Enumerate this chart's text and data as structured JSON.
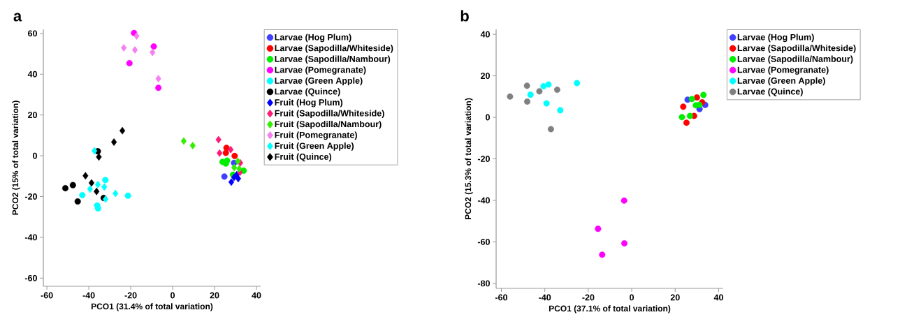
{
  "chart_data": [
    {
      "type": "scatter",
      "title": "a",
      "xlabel": "PCO1 (31.4% of total variation)",
      "ylabel": "PCO2 (15% of total variation)",
      "xlim": [
        -61.7,
        42
      ],
      "ylim": [
        -64,
        62
      ],
      "xticks": [
        -60,
        -40,
        -20,
        0,
        20,
        40
      ],
      "yticks": [
        -60,
        -40,
        -20,
        0,
        20,
        40,
        60
      ],
      "grid": false,
      "legend": "top right",
      "series": [
        {
          "name": "Larvae (Hog Plum)",
          "color": "#4040ff",
          "marker": "circle",
          "x": [
            24.7,
            29.3
          ],
          "values": [
            -10.2,
            -3.5
          ]
        },
        {
          "name": "Larvae (Sapodilla/Whiteside)",
          "color": "#ff0000",
          "marker": "circle",
          "x": [
            25.7,
            25.4,
            29.6
          ],
          "values": [
            3.9,
            1.4,
            -0.1
          ]
        },
        {
          "name": "Larvae (Sapodilla/Nambour)",
          "color": "#00ee00",
          "marker": "circle",
          "x": [
            23.8,
            26,
            25.4,
            33.9,
            28.8
          ],
          "values": [
            -3.0,
            -2.4,
            -3.8,
            -7.3,
            -9.3
          ]
        },
        {
          "name": "Larvae (Pomegranate)",
          "color": "#ff00ff",
          "marker": "circle",
          "x": [
            -18.4,
            -9,
            -20.6,
            -6.8
          ],
          "values": [
            60.2,
            53.6,
            45.4,
            33.3
          ]
        },
        {
          "name": "Larvae (Green Apple)",
          "color": "#00ffff",
          "marker": "circle",
          "x": [
            -32.1,
            -43.1,
            -21.3,
            -36,
            -35.6
          ],
          "values": [
            -11.9,
            -19.3,
            -19.6,
            -24.4,
            -25.8
          ]
        },
        {
          "name": "Larvae (Quince)",
          "color": "#000000",
          "marker": "circle",
          "x": [
            -35.7,
            -51.2,
            -47.6,
            -45.3,
            -32.9
          ],
          "values": [
            2.2,
            -15.9,
            -14.4,
            -22.4,
            -20.7
          ]
        },
        {
          "name": "Fruit (Hog Plum)",
          "color": "#0000ff",
          "marker": "diamond",
          "x": [
            28,
            31.3,
            29.3,
            30.6
          ],
          "values": [
            -12.9,
            -11.2,
            -10.6,
            -9.3
          ]
        },
        {
          "name": "Fruit (Sapodilla/Whiteside)",
          "color": "#ff1a75",
          "marker": "diamond",
          "x": [
            21.9,
            27.7,
            22.4,
            32.3,
            32.1
          ],
          "values": [
            7.9,
            3,
            1.3,
            -3.5,
            -8.1
          ]
        },
        {
          "name": "Fruit (Sapodilla/Nambour)",
          "color": "#33ee00",
          "marker": "diamond",
          "x": [
            5.3,
            9.6,
            31.1,
            29.4,
            31.8
          ],
          "values": [
            7.2,
            5.0,
            -2.7,
            -5.8,
            -6.4
          ]
        },
        {
          "name": "Fruit (Pomegranate)",
          "color": "#f580f0",
          "marker": "diamond",
          "x": [
            -17.2,
            -23.3,
            -18,
            -9.6,
            -6.8
          ],
          "values": [
            58.7,
            52.9,
            51.9,
            50.7,
            37.8
          ]
        },
        {
          "name": "Fruit (Green Apple)",
          "color": "#00ffff",
          "marker": "diamond",
          "x": [
            -37.3,
            -35.7,
            -39.4,
            -32.6,
            -27.3,
            -32
          ],
          "values": [
            2.4,
            -14.1,
            -16.3,
            -15.3,
            -18.5,
            -21.3
          ]
        },
        {
          "name": "Fruit (Quince)",
          "color": "#000000",
          "marker": "diamond",
          "x": [
            -24,
            -28,
            -35.2,
            -41.6,
            -38.7,
            -36.3
          ],
          "values": [
            12.3,
            6.7,
            -0.6,
            -9.8,
            -13.3,
            -17.5
          ]
        }
      ]
    },
    {
      "type": "scatter",
      "title": "b",
      "xlabel": "PCO1 (37.1% of total variation)",
      "ylabel": "PCO2 (15.3% of total variation)",
      "xlim": [
        -62.4,
        42.1
      ],
      "ylim": [
        -82.4,
        42.4
      ],
      "xticks": [
        -60,
        -40,
        -20,
        0,
        20,
        40
      ],
      "yticks": [
        -80,
        -60,
        -40,
        -20,
        0,
        20,
        40
      ],
      "grid": false,
      "legend": "top right",
      "series": [
        {
          "name": "Larvae (Hog Plum)",
          "color": "#4040ff",
          "marker": "circle",
          "x": [
            25.7,
            33.8,
            31.2
          ],
          "values": [
            8.5,
            6.0,
            4.0
          ]
        },
        {
          "name": "Larvae (Sapodilla/Whiteside)",
          "color": "#ff0000",
          "marker": "circle",
          "x": [
            23.7,
            25.2,
            28.7,
            30,
            32.4
          ],
          "values": [
            5.1,
            -2.6,
            0.7,
            9.6,
            7.2
          ]
        },
        {
          "name": "Larvae (Sapodilla/Nambour)",
          "color": "#00ee00",
          "marker": "circle",
          "x": [
            27.7,
            33,
            29.5,
            31.1,
            23.1,
            26.8
          ],
          "values": [
            8.8,
            10.8,
            5.8,
            6,
            0.1,
            0.7
          ]
        },
        {
          "name": "Larvae (Pomegranate)",
          "color": "#ff00ff",
          "marker": "circle",
          "x": [
            -3.5,
            -15.5,
            -3.4,
            -13.6
          ],
          "values": [
            -40.1,
            -53.7,
            -60.7,
            -66.2
          ]
        },
        {
          "name": "Larvae (Green Apple)",
          "color": "#00ffff",
          "marker": "circle",
          "x": [
            -46.6,
            -40.6,
            -38.3,
            -39.2,
            -32.9,
            -25.2
          ],
          "values": [
            10.9,
            15,
            15.8,
            6.7,
            3.4,
            16.5
          ]
        },
        {
          "name": "Larvae (Quince)",
          "color": "#808080",
          "marker": "circle",
          "x": [
            -56,
            -48.2,
            -48.1,
            -42.5,
            -34.3,
            -37.2
          ],
          "values": [
            10,
            15.2,
            7.6,
            12.5,
            13.3,
            -5.7
          ]
        }
      ]
    }
  ]
}
